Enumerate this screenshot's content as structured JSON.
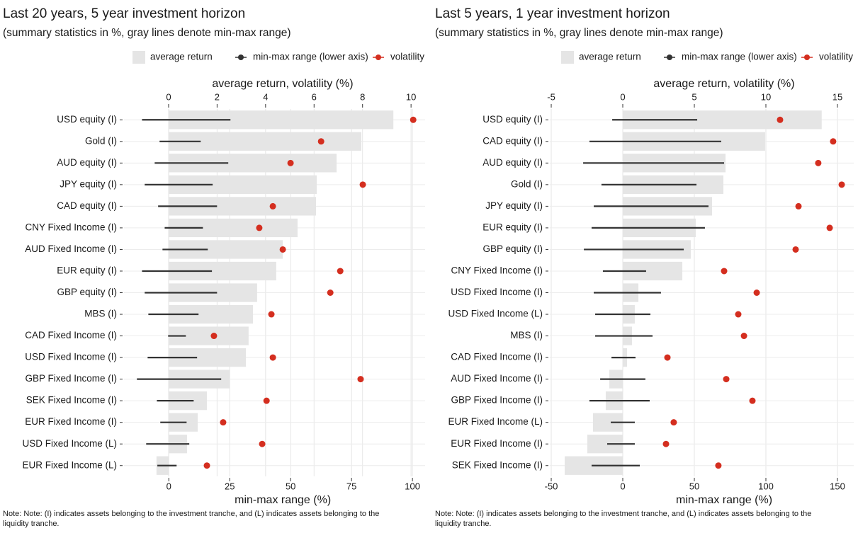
{
  "chart_data": [
    {
      "type": "bar",
      "title": "Last 20 years, 5 year investment horizon",
      "subtitle": "(summary statistics in %, gray lines denote min-max range)",
      "xlabel": "average return, volatility (%)",
      "x2label": "min-max range (%)",
      "note": "Note: Note: (I) indicates assets belonging to the investment tranche, and (L) indicates assets belonging to the liquidity tranche.",
      "categories": [
        "USD equity (I)",
        "Gold (I)",
        "AUD equity (I)",
        "JPY equity (I)",
        "CAD equity (I)",
        "CNY Fixed Income (I)",
        "AUD Fixed Income (I)",
        "EUR equity (I)",
        "GBP equity (I)",
        "MBS (I)",
        "CAD Fixed Income (I)",
        "USD Fixed Income (I)",
        "GBP Fixed Income (I)",
        "SEK Fixed Income (I)",
        "EUR Fixed Income (I)",
        "USD Fixed Income (L)",
        "EUR Fixed Income (L)"
      ],
      "series": [
        {
          "name": "average return",
          "mark": "bar",
          "color": "#e5e5e5",
          "values": [
            9.27,
            7.95,
            6.93,
            6.11,
            6.08,
            5.32,
            4.71,
            4.44,
            3.65,
            3.48,
            3.3,
            3.19,
            2.51,
            1.58,
            1.2,
            0.76,
            -0.5
          ]
        },
        {
          "name": "min-max range (lower axis)",
          "mark": "range",
          "color": "#333333",
          "axis": "x2",
          "low": [
            -11.0,
            -3.8,
            -5.8,
            -9.9,
            -4.4,
            -1.7,
            -2.6,
            -11.0,
            -9.9,
            -8.4,
            -0.3,
            -8.7,
            -13.1,
            -4.9,
            -3.5,
            -9.3,
            -4.7
          ],
          "high": [
            25.3,
            13.1,
            24.4,
            18.0,
            19.8,
            14.0,
            16.0,
            17.7,
            19.8,
            12.2,
            7.0,
            11.6,
            21.5,
            10.2,
            7.3,
            8.4,
            3.2
          ]
        },
        {
          "name": "volatility",
          "mark": "point",
          "color": "#d42e1f",
          "values": [
            10.09,
            6.29,
            5.03,
            8.01,
            4.3,
            3.74,
            4.71,
            7.08,
            6.67,
            4.24,
            1.87,
            4.3,
            7.92,
            4.04,
            2.25,
            3.86,
            1.58
          ]
        }
      ],
      "xlim": [
        -1.84,
        10.58
      ],
      "xticks": [
        0,
        2,
        4,
        6,
        8,
        10
      ],
      "x2lim": [
        -18.4,
        105.2
      ],
      "x2ticks": [
        0,
        25,
        50,
        75,
        100
      ],
      "grid": true
    },
    {
      "type": "bar",
      "title": "Last 5 years, 1 year investment horizon",
      "subtitle": "(summary statistics in %, gray lines denote min-max range)",
      "xlabel": "average return, volatility (%)",
      "x2label": "min-max range (%)",
      "note": "Note: Note: (I) indicates assets belonging to the investment tranche, and (L) indicates assets belonging to the liquidity tranche.",
      "categories": [
        "USD equity (I)",
        "CAD equity (I)",
        "AUD equity (I)",
        "Gold (I)",
        "JPY equity (I)",
        "EUR equity (I)",
        "GBP equity (I)",
        "CNY Fixed Income (I)",
        "USD Fixed Income (I)",
        "USD Fixed Income (L)",
        "MBS (I)",
        "CAD Fixed Income (I)",
        "AUD Fixed Income (I)",
        "GBP Fixed Income (I)",
        "EUR Fixed Income (L)",
        "EUR Fixed Income (I)",
        "SEK Fixed Income (I)"
      ],
      "series": [
        {
          "name": "average return",
          "mark": "bar",
          "color": "#e5e5e5",
          "values": [
            13.9,
            9.95,
            7.18,
            7.03,
            6.24,
            5.1,
            4.75,
            4.16,
            1.09,
            0.84,
            0.64,
            0.3,
            -0.94,
            -1.19,
            -2.08,
            -2.48,
            -4.06
          ]
        },
        {
          "name": "min-max range (lower axis)",
          "mark": "range",
          "color": "#333333",
          "axis": "x2",
          "low": [
            -7.4,
            -23.3,
            -27.7,
            -14.9,
            -20.3,
            -21.8,
            -27.2,
            -13.9,
            -20.3,
            -19.3,
            -19.3,
            -7.9,
            -15.8,
            -23.3,
            -8.4,
            -10.9,
            -21.8
          ],
          "high": [
            52.0,
            68.8,
            70.8,
            51.5,
            59.9,
            57.4,
            42.6,
            16.3,
            26.7,
            19.3,
            20.8,
            8.9,
            15.8,
            18.8,
            8.4,
            8.4,
            11.9
          ]
        },
        {
          "name": "volatility",
          "mark": "point",
          "color": "#d42e1f",
          "values": [
            10.99,
            14.7,
            13.66,
            15.3,
            12.28,
            14.46,
            12.08,
            7.08,
            9.36,
            8.07,
            8.47,
            3.12,
            7.23,
            9.06,
            3.56,
            3.02,
            6.68
          ]
        }
      ],
      "xlim": [
        -5.1,
        16.14
      ],
      "xticks": [
        -5,
        0,
        5,
        10,
        15
      ],
      "x2lim": [
        -51,
        161.4
      ],
      "x2ticks": [
        -50,
        0,
        50,
        100,
        150
      ],
      "grid": true
    }
  ]
}
